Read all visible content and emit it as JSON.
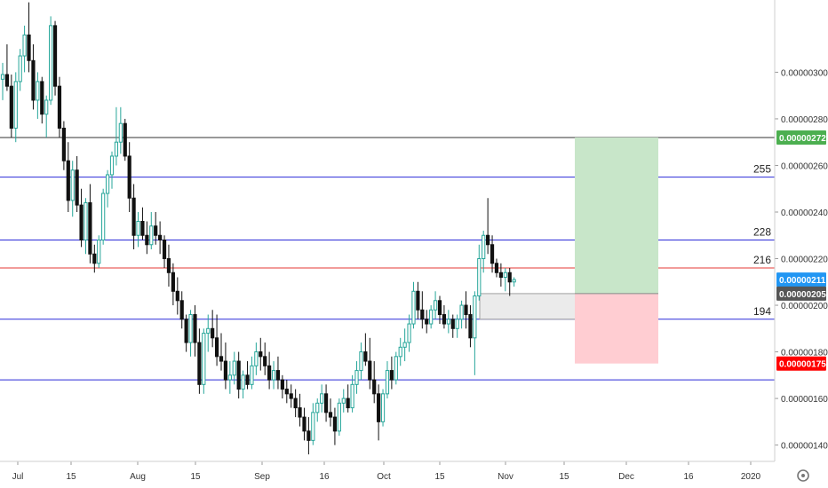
{
  "chart_data": {
    "type": "candlestick",
    "price_scale": {
      "ylim": [
        1.33e-06,
        3.31e-06
      ],
      "ticks": [
        "0.00000140",
        "0.00000160",
        "0.00000180",
        "0.00000200",
        "0.00000220",
        "0.00000240",
        "0.00000260",
        "0.00000280",
        "0.00000300"
      ]
    },
    "time_scale": {
      "ticks": [
        "Jul",
        "15",
        "Aug",
        "15",
        "Sep",
        "16",
        "Oct",
        "15",
        "Nov",
        "15",
        "Dec",
        "16",
        "2020"
      ]
    },
    "levels": [
      {
        "price": 2.72e-06,
        "label": "",
        "color": "#333333"
      },
      {
        "price": 2.55e-06,
        "label": "255",
        "color": "#2a2ad8"
      },
      {
        "price": 2.28e-06,
        "label": "228",
        "color": "#2a2ad8"
      },
      {
        "price": 2.16e-06,
        "label": "216",
        "color": "#e53935"
      },
      {
        "price": 1.94e-06,
        "label": "194",
        "color": "#2a2ad8"
      },
      {
        "price": 1.68e-06,
        "label": "",
        "color": "#2a2ad8"
      }
    ],
    "badges": [
      {
        "text": "0.00000272",
        "price": 2.72e-06,
        "color": "#4caf50"
      },
      {
        "text": "0.00000211",
        "price": 2.11e-06,
        "color": "#2196f3"
      },
      {
        "text": "0.00000205",
        "price": 2.05e-06,
        "color": "#555555"
      },
      {
        "text": "0.00000175",
        "price": 1.75e-06,
        "color": "#ff0000"
      }
    ],
    "position": {
      "entry": 2.05e-06,
      "target": 2.72e-06,
      "stop": 1.75e-06,
      "profit_color": "#c8e6c9",
      "loss_color": "#ffcdd2"
    },
    "demand_zone": {
      "top": 2.05e-06,
      "bottom": 1.94e-06,
      "color": "#e8e8e8"
    },
    "colors": {
      "up": "#26a69a",
      "down": "#111111",
      "up_fill": "#ffffff"
    },
    "candles": [
      [
        297,
        304,
        288,
        299
      ],
      [
        299,
        312,
        292,
        294
      ],
      [
        294,
        299,
        272,
        276
      ],
      [
        276,
        300,
        270,
        296
      ],
      [
        296,
        310,
        292,
        307
      ],
      [
        307,
        320,
        300,
        316
      ],
      [
        316,
        330,
        300,
        305
      ],
      [
        305,
        312,
        284,
        288
      ],
      [
        288,
        300,
        280,
        296
      ],
      [
        296,
        298,
        278,
        282
      ],
      [
        282,
        290,
        272,
        288
      ],
      [
        288,
        324,
        286,
        320
      ],
      [
        320,
        322,
        290,
        294
      ],
      [
        294,
        298,
        272,
        276
      ],
      [
        276,
        279,
        258,
        262
      ],
      [
        262,
        270,
        240,
        245
      ],
      [
        245,
        262,
        238,
        258
      ],
      [
        258,
        264,
        240,
        243
      ],
      [
        243,
        250,
        225,
        228
      ],
      [
        228,
        246,
        222,
        244
      ],
      [
        244,
        252,
        218,
        222
      ],
      [
        222,
        226,
        214,
        218
      ],
      [
        218,
        230,
        216,
        228
      ],
      [
        228,
        250,
        226,
        248
      ],
      [
        248,
        258,
        242,
        256
      ],
      [
        256,
        266,
        250,
        264
      ],
      [
        264,
        285,
        260,
        270
      ],
      [
        270,
        285,
        265,
        278
      ],
      [
        278,
        280,
        262,
        264
      ],
      [
        264,
        270,
        240,
        246
      ],
      [
        246,
        252,
        224,
        230
      ],
      [
        230,
        240,
        225,
        236
      ],
      [
        236,
        242,
        228,
        230
      ],
      [
        230,
        236,
        222,
        226
      ],
      [
        226,
        240,
        224,
        234
      ],
      [
        234,
        240,
        226,
        230
      ],
      [
        230,
        236,
        222,
        228
      ],
      [
        228,
        230,
        216,
        220
      ],
      [
        220,
        226,
        208,
        214
      ],
      [
        214,
        218,
        200,
        206
      ],
      [
        206,
        212,
        196,
        202
      ],
      [
        202,
        206,
        190,
        194
      ],
      [
        194,
        196,
        180,
        184
      ],
      [
        184,
        198,
        178,
        196
      ],
      [
        196,
        200,
        178,
        184
      ],
      [
        184,
        190,
        162,
        166
      ],
      [
        166,
        190,
        162,
        188
      ],
      [
        188,
        196,
        180,
        190
      ],
      [
        190,
        198,
        182,
        186
      ],
      [
        186,
        196,
        174,
        178
      ],
      [
        178,
        188,
        172,
        176
      ],
      [
        176,
        184,
        164,
        168
      ],
      [
        168,
        176,
        162,
        170
      ],
      [
        170,
        180,
        166,
        176
      ],
      [
        176,
        180,
        160,
        164
      ],
      [
        164,
        172,
        160,
        170
      ],
      [
        170,
        176,
        164,
        166
      ],
      [
        166,
        178,
        164,
        174
      ],
      [
        174,
        184,
        170,
        180
      ],
      [
        180,
        186,
        172,
        178
      ],
      [
        178,
        184,
        170,
        174
      ],
      [
        174,
        180,
        164,
        168
      ],
      [
        168,
        176,
        164,
        172
      ],
      [
        172,
        178,
        164,
        168
      ],
      [
        168,
        170,
        160,
        164
      ],
      [
        164,
        168,
        158,
        162
      ],
      [
        162,
        166,
        156,
        160
      ],
      [
        160,
        164,
        152,
        156
      ],
      [
        156,
        162,
        148,
        152
      ],
      [
        152,
        156,
        142,
        146
      ],
      [
        146,
        152,
        136,
        142
      ],
      [
        142,
        158,
        140,
        154
      ],
      [
        154,
        160,
        150,
        158
      ],
      [
        158,
        166,
        154,
        162
      ],
      [
        162,
        166,
        150,
        154
      ],
      [
        154,
        160,
        148,
        152
      ],
      [
        152,
        156,
        140,
        146
      ],
      [
        146,
        160,
        144,
        158
      ],
      [
        158,
        164,
        154,
        160
      ],
      [
        160,
        166,
        154,
        156
      ],
      [
        156,
        170,
        154,
        166
      ],
      [
        166,
        176,
        162,
        172
      ],
      [
        172,
        184,
        168,
        180
      ],
      [
        180,
        188,
        174,
        176
      ],
      [
        176,
        186,
        164,
        168
      ],
      [
        168,
        176,
        158,
        162
      ],
      [
        162,
        166,
        142,
        150
      ],
      [
        150,
        164,
        148,
        162
      ],
      [
        162,
        176,
        160,
        172
      ],
      [
        172,
        178,
        164,
        168
      ],
      [
        168,
        180,
        166,
        178
      ],
      [
        178,
        186,
        174,
        182
      ],
      [
        182,
        190,
        176,
        184
      ],
      [
        184,
        196,
        180,
        192
      ],
      [
        192,
        210,
        190,
        206
      ],
      [
        206,
        210,
        194,
        198
      ],
      [
        198,
        206,
        190,
        194
      ],
      [
        194,
        198,
        188,
        192
      ],
      [
        192,
        200,
        190,
        198
      ],
      [
        198,
        206,
        194,
        202
      ],
      [
        202,
        204,
        192,
        196
      ],
      [
        196,
        200,
        190,
        192
      ],
      [
        192,
        198,
        188,
        194
      ],
      [
        194,
        196,
        186,
        190
      ],
      [
        190,
        196,
        186,
        194
      ],
      [
        194,
        202,
        190,
        200
      ],
      [
        200,
        206,
        190,
        196
      ],
      [
        196,
        200,
        182,
        186
      ],
      [
        186,
        206,
        170,
        204
      ],
      [
        204,
        226,
        202,
        220
      ],
      [
        220,
        232,
        214,
        230
      ],
      [
        230,
        246,
        222,
        226
      ],
      [
        226,
        230,
        214,
        218
      ],
      [
        218,
        220,
        212,
        214
      ],
      [
        214,
        218,
        208,
        212
      ],
      [
        212,
        216,
        206,
        214
      ],
      [
        214,
        216,
        204,
        210
      ],
      [
        210,
        212,
        208,
        211
      ]
    ]
  }
}
